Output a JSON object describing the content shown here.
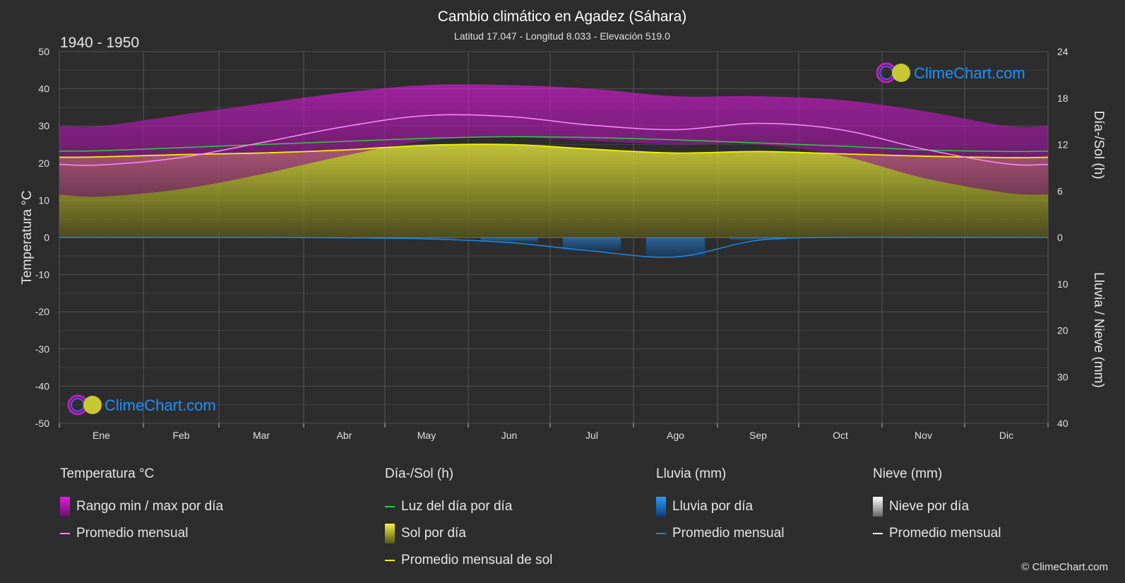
{
  "header": {
    "title": "Cambio climático en Agadez (Sáhara)",
    "subtitle": "Latitud 17.047 - Longitud 8.033 - Elevación 519.0",
    "period": "1940 - 1950"
  },
  "axes": {
    "left_label": "Temperatura °C",
    "right_top_label": "Día-/Sol (h)",
    "right_bottom_label": "Lluvia / Nieve (mm)",
    "left_ticks": [
      "50",
      "40",
      "30",
      "20",
      "10",
      "0",
      "-10",
      "-20",
      "-30",
      "-40",
      "-50"
    ],
    "right_top_ticks": [
      "24",
      "18",
      "12",
      "6",
      "0"
    ],
    "right_bottom_ticks": [
      "10",
      "20",
      "30",
      "40"
    ]
  },
  "chart_data": {
    "type": "area",
    "categories": [
      "Ene",
      "Feb",
      "Mar",
      "Abr",
      "May",
      "Jun",
      "Jul",
      "Ago",
      "Sep",
      "Oct",
      "Nov",
      "Dic"
    ],
    "ylim_temp": [
      -50,
      50
    ],
    "ylim_hours": [
      0,
      24
    ],
    "ylim_precip_mm": [
      0,
      40
    ],
    "series": [
      {
        "name": "Rango min / max por día",
        "unit": "°C",
        "min": [
          11,
          13,
          17,
          22,
          26,
          27,
          26,
          25,
          25,
          22,
          16,
          12
        ],
        "max": [
          30,
          33,
          36,
          39,
          41,
          41,
          40,
          38,
          38,
          37,
          34,
          30
        ]
      },
      {
        "name": "Promedio mensual",
        "unit": "°C",
        "values": [
          19.5,
          21.5,
          25.5,
          29.8,
          32.8,
          32.5,
          30.2,
          29.0,
          30.7,
          29.0,
          23.8,
          19.8
        ]
      },
      {
        "name": "Luz del día por día",
        "unit": "h",
        "values": [
          11.2,
          11.6,
          12.0,
          12.4,
          12.8,
          13.0,
          12.9,
          12.6,
          12.2,
          11.8,
          11.3,
          11.1
        ]
      },
      {
        "name": "Sol por día",
        "unit": "h",
        "values": [
          10.4,
          10.7,
          10.9,
          11.3,
          11.9,
          12.0,
          11.4,
          10.9,
          11.1,
          10.8,
          10.5,
          10.3
        ]
      },
      {
        "name": "Promedio mensual de sol",
        "unit": "h",
        "values": [
          10.4,
          10.7,
          10.9,
          11.3,
          11.9,
          12.0,
          11.4,
          10.9,
          11.1,
          10.8,
          10.5,
          10.3
        ]
      },
      {
        "name": "Lluvia promedio mensual",
        "unit": "mm",
        "values": [
          0,
          0,
          0,
          0.1,
          0.3,
          1.1,
          2.9,
          4.2,
          0.6,
          0,
          0,
          0
        ]
      }
    ]
  },
  "legend": {
    "temp": {
      "header": "Temperatura °C",
      "range": "Rango min / max por día",
      "avg": "Promedio mensual"
    },
    "sun": {
      "header": "Día-/Sol (h)",
      "daylight": "Luz del día por día",
      "sun": "Sol por día",
      "sun_avg": "Promedio mensual de sol"
    },
    "rain": {
      "header": "Lluvia (mm)",
      "rain": "Lluvia por día",
      "avg": "Promedio mensual"
    },
    "snow": {
      "header": "Nieve (mm)",
      "snow": "Nieve por día",
      "avg": "Promedio mensual"
    }
  },
  "brand": {
    "name": "ClimeChart.com",
    "copyright": "© ClimeChart.com"
  },
  "colors": {
    "bg": "#2d2d2d",
    "temp_range": "#c21fc2",
    "temp_avg": "#ff8cff",
    "daylight": "#2ecc40",
    "sun": "#aaaa2a",
    "sun_avg": "#f2f200",
    "rain": "#1e88e5",
    "snow": "#ffffff",
    "brand_text": "#1e90ff"
  }
}
